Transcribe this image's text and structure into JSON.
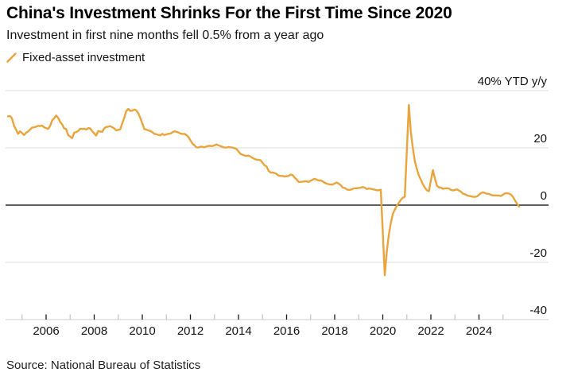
{
  "header": {
    "title": "China's Investment Shrinks For the First Time Since 2020",
    "subtitle": "Investment in first nine months fell 0.5% from a year ago"
  },
  "legend": {
    "items": [
      {
        "label": "Fixed-asset investment",
        "marker": "slash-icon",
        "color": "#E9A43C"
      }
    ]
  },
  "footer": {
    "source": "Source: National Bureau of Statistics"
  },
  "colors": {
    "line": "#E9A43C",
    "gridline": "#DBDBDB",
    "zero_line": "#000000",
    "axis_line": "#CDCDCD",
    "tick_major": "#191919",
    "tick_minor": "#C6C6C6",
    "text": "#141414"
  },
  "chart_data": {
    "type": "line",
    "title": "China's Investment Shrinks For the First Time Since 2020",
    "subtitle": "Investment in first nine months fell 0.5% from a year ago",
    "ylabel": "40% YTD y/y",
    "xlabel": "",
    "ylim": [
      -40,
      40
    ],
    "xlim": [
      2004.3,
      2026.9
    ],
    "grid": "horizontal",
    "legend_position": "top-left",
    "y_gridlines": [
      40,
      20,
      0,
      -20,
      -40
    ],
    "y_labels": [
      {
        "value": 40,
        "label": "40% YTD y/y"
      },
      {
        "value": 20,
        "label": "20"
      },
      {
        "value": 0,
        "label": "0"
      },
      {
        "value": -20,
        "label": "-20"
      },
      {
        "value": -40,
        "label": "-40"
      }
    ],
    "x_major_ticks": [
      {
        "year": 2006,
        "label": "2006"
      },
      {
        "year": 2008,
        "label": "2008"
      },
      {
        "year": 2010,
        "label": "2010"
      },
      {
        "year": 2012,
        "label": "2012"
      },
      {
        "year": 2014,
        "label": "2014"
      },
      {
        "year": 2016,
        "label": "2016"
      },
      {
        "year": 2018,
        "label": "2018"
      },
      {
        "year": 2020,
        "label": "2020"
      },
      {
        "year": 2022,
        "label": "2022"
      },
      {
        "year": 2024,
        "label": "2024"
      }
    ],
    "x_minor_ticks": [
      2005,
      2007,
      2009,
      2011,
      2013,
      2015,
      2017,
      2019,
      2021,
      2023,
      2025
    ],
    "series": [
      {
        "name": "Fixed-asset investment",
        "color": "#E9A43C",
        "points": [
          [
            2004.417,
            31.0
          ],
          [
            2004.5,
            31.1
          ],
          [
            2004.583,
            30.3
          ],
          [
            2004.667,
            27.7
          ],
          [
            2004.75,
            26.4
          ],
          [
            2004.833,
            24.9
          ],
          [
            2004.917,
            25.8
          ],
          [
            2005.083,
            24.5
          ],
          [
            2005.167,
            25.3
          ],
          [
            2005.25,
            25.7
          ],
          [
            2005.333,
            26.4
          ],
          [
            2005.417,
            27.1
          ],
          [
            2005.5,
            27.2
          ],
          [
            2005.583,
            27.4
          ],
          [
            2005.667,
            27.7
          ],
          [
            2005.75,
            27.6
          ],
          [
            2005.833,
            27.8
          ],
          [
            2005.917,
            27.2
          ],
          [
            2006.083,
            26.6
          ],
          [
            2006.167,
            27.7
          ],
          [
            2006.25,
            29.6
          ],
          [
            2006.333,
            30.3
          ],
          [
            2006.417,
            31.3
          ],
          [
            2006.5,
            30.5
          ],
          [
            2006.583,
            29.1
          ],
          [
            2006.667,
            28.2
          ],
          [
            2006.75,
            26.8
          ],
          [
            2006.833,
            26.6
          ],
          [
            2006.917,
            24.5
          ],
          [
            2007.083,
            23.4
          ],
          [
            2007.167,
            25.3
          ],
          [
            2007.25,
            25.5
          ],
          [
            2007.333,
            25.9
          ],
          [
            2007.417,
            26.7
          ],
          [
            2007.5,
            26.6
          ],
          [
            2007.583,
            26.7
          ],
          [
            2007.667,
            26.4
          ],
          [
            2007.75,
            26.9
          ],
          [
            2007.833,
            26.8
          ],
          [
            2007.917,
            25.8
          ],
          [
            2008.083,
            24.3
          ],
          [
            2008.167,
            25.9
          ],
          [
            2008.25,
            25.7
          ],
          [
            2008.333,
            25.6
          ],
          [
            2008.417,
            26.8
          ],
          [
            2008.5,
            27.3
          ],
          [
            2008.583,
            27.4
          ],
          [
            2008.667,
            27.6
          ],
          [
            2008.75,
            27.2
          ],
          [
            2008.833,
            26.8
          ],
          [
            2008.917,
            26.1
          ],
          [
            2009.083,
            26.5
          ],
          [
            2009.167,
            28.6
          ],
          [
            2009.25,
            30.5
          ],
          [
            2009.333,
            32.9
          ],
          [
            2009.417,
            33.6
          ],
          [
            2009.5,
            32.9
          ],
          [
            2009.583,
            33.0
          ],
          [
            2009.667,
            33.4
          ],
          [
            2009.75,
            33.1
          ],
          [
            2009.833,
            32.1
          ],
          [
            2009.917,
            30.5
          ],
          [
            2010.083,
            26.6
          ],
          [
            2010.167,
            26.4
          ],
          [
            2010.25,
            26.1
          ],
          [
            2010.333,
            25.9
          ],
          [
            2010.417,
            25.5
          ],
          [
            2010.5,
            24.9
          ],
          [
            2010.583,
            24.8
          ],
          [
            2010.667,
            24.5
          ],
          [
            2010.75,
            24.4
          ],
          [
            2010.833,
            24.9
          ],
          [
            2010.917,
            24.5
          ],
          [
            2011.083,
            24.9
          ],
          [
            2011.167,
            25.0
          ],
          [
            2011.25,
            25.4
          ],
          [
            2011.333,
            25.8
          ],
          [
            2011.417,
            25.6
          ],
          [
            2011.5,
            25.4
          ],
          [
            2011.583,
            25.0
          ],
          [
            2011.667,
            24.9
          ],
          [
            2011.75,
            24.9
          ],
          [
            2011.833,
            24.5
          ],
          [
            2011.917,
            23.8
          ],
          [
            2012.083,
            21.5
          ],
          [
            2012.167,
            20.9
          ],
          [
            2012.25,
            20.2
          ],
          [
            2012.333,
            20.1
          ],
          [
            2012.417,
            20.4
          ],
          [
            2012.5,
            20.4
          ],
          [
            2012.583,
            20.2
          ],
          [
            2012.667,
            20.5
          ],
          [
            2012.75,
            20.7
          ],
          [
            2012.833,
            20.7
          ],
          [
            2012.917,
            20.6
          ],
          [
            2013.083,
            21.2
          ],
          [
            2013.167,
            20.9
          ],
          [
            2013.25,
            20.6
          ],
          [
            2013.333,
            20.4
          ],
          [
            2013.417,
            20.1
          ],
          [
            2013.5,
            20.1
          ],
          [
            2013.583,
            20.3
          ],
          [
            2013.667,
            20.2
          ],
          [
            2013.75,
            20.1
          ],
          [
            2013.833,
            19.9
          ],
          [
            2013.917,
            19.6
          ],
          [
            2014.083,
            17.9
          ],
          [
            2014.167,
            17.6
          ],
          [
            2014.25,
            17.3
          ],
          [
            2014.333,
            17.2
          ],
          [
            2014.417,
            17.3
          ],
          [
            2014.5,
            17.0
          ],
          [
            2014.583,
            16.5
          ],
          [
            2014.667,
            16.1
          ],
          [
            2014.75,
            15.9
          ],
          [
            2014.833,
            15.8
          ],
          [
            2014.917,
            15.7
          ],
          [
            2015.083,
            13.9
          ],
          [
            2015.167,
            13.5
          ],
          [
            2015.25,
            12.0
          ],
          [
            2015.333,
            11.4
          ],
          [
            2015.417,
            11.4
          ],
          [
            2015.5,
            11.2
          ],
          [
            2015.583,
            10.9
          ],
          [
            2015.667,
            10.3
          ],
          [
            2015.75,
            10.2
          ],
          [
            2015.833,
            10.2
          ],
          [
            2015.917,
            10.0
          ],
          [
            2016.083,
            10.2
          ],
          [
            2016.167,
            10.7
          ],
          [
            2016.25,
            10.5
          ],
          [
            2016.333,
            9.6
          ],
          [
            2016.417,
            9.0
          ],
          [
            2016.5,
            8.1
          ],
          [
            2016.583,
            8.1
          ],
          [
            2016.667,
            8.2
          ],
          [
            2016.75,
            8.3
          ],
          [
            2016.833,
            8.3
          ],
          [
            2016.917,
            8.1
          ],
          [
            2017.083,
            8.9
          ],
          [
            2017.167,
            9.2
          ],
          [
            2017.25,
            8.9
          ],
          [
            2017.333,
            8.6
          ],
          [
            2017.417,
            8.6
          ],
          [
            2017.5,
            8.3
          ],
          [
            2017.583,
            7.8
          ],
          [
            2017.667,
            7.5
          ],
          [
            2017.75,
            7.3
          ],
          [
            2017.833,
            7.2
          ],
          [
            2017.917,
            7.2
          ],
          [
            2018.083,
            7.9
          ],
          [
            2018.167,
            7.5
          ],
          [
            2018.25,
            7.0
          ],
          [
            2018.333,
            6.1
          ],
          [
            2018.417,
            6.0
          ],
          [
            2018.5,
            5.5
          ],
          [
            2018.583,
            5.3
          ],
          [
            2018.667,
            5.4
          ],
          [
            2018.75,
            5.7
          ],
          [
            2018.833,
            5.9
          ],
          [
            2018.917,
            5.9
          ],
          [
            2019.083,
            6.1
          ],
          [
            2019.167,
            6.3
          ],
          [
            2019.25,
            6.1
          ],
          [
            2019.333,
            5.6
          ],
          [
            2019.417,
            5.8
          ],
          [
            2019.5,
            5.7
          ],
          [
            2019.583,
            5.5
          ],
          [
            2019.667,
            5.4
          ],
          [
            2019.75,
            5.2
          ],
          [
            2019.833,
            5.2
          ],
          [
            2019.917,
            5.4
          ],
          [
            2020.083,
            -24.5
          ],
          [
            2020.167,
            -16.1
          ],
          [
            2020.25,
            -10.3
          ],
          [
            2020.333,
            -6.3
          ],
          [
            2020.417,
            -3.1
          ],
          [
            2020.5,
            -1.6
          ],
          [
            2020.583,
            -0.3
          ],
          [
            2020.667,
            0.8
          ],
          [
            2020.75,
            1.8
          ],
          [
            2020.833,
            2.6
          ],
          [
            2020.917,
            2.9
          ],
          [
            2021.083,
            35.0
          ],
          [
            2021.167,
            25.6
          ],
          [
            2021.25,
            19.9
          ],
          [
            2021.333,
            15.4
          ],
          [
            2021.417,
            12.6
          ],
          [
            2021.5,
            10.3
          ],
          [
            2021.583,
            8.9
          ],
          [
            2021.667,
            7.3
          ],
          [
            2021.75,
            6.1
          ],
          [
            2021.833,
            5.2
          ],
          [
            2021.917,
            4.9
          ],
          [
            2022.083,
            12.2
          ],
          [
            2022.167,
            9.3
          ],
          [
            2022.25,
            6.8
          ],
          [
            2022.333,
            6.2
          ],
          [
            2022.417,
            6.1
          ],
          [
            2022.5,
            5.7
          ],
          [
            2022.583,
            5.8
          ],
          [
            2022.667,
            5.9
          ],
          [
            2022.75,
            5.8
          ],
          [
            2022.833,
            5.3
          ],
          [
            2022.917,
            5.1
          ],
          [
            2023.083,
            5.5
          ],
          [
            2023.167,
            5.1
          ],
          [
            2023.25,
            4.7
          ],
          [
            2023.333,
            4.0
          ],
          [
            2023.417,
            3.8
          ],
          [
            2023.5,
            3.4
          ],
          [
            2023.583,
            3.2
          ],
          [
            2023.667,
            3.1
          ],
          [
            2023.75,
            2.9
          ],
          [
            2023.833,
            2.9
          ],
          [
            2023.917,
            3.0
          ],
          [
            2024.083,
            4.2
          ],
          [
            2024.167,
            4.5
          ],
          [
            2024.25,
            4.2
          ],
          [
            2024.333,
            4.0
          ],
          [
            2024.417,
            3.9
          ],
          [
            2024.5,
            3.6
          ],
          [
            2024.583,
            3.4
          ],
          [
            2024.667,
            3.4
          ],
          [
            2024.75,
            3.4
          ],
          [
            2024.833,
            3.3
          ],
          [
            2024.917,
            3.2
          ],
          [
            2025.083,
            4.1
          ],
          [
            2025.167,
            4.2
          ],
          [
            2025.25,
            4.0
          ],
          [
            2025.333,
            3.7
          ],
          [
            2025.417,
            2.8
          ],
          [
            2025.5,
            1.6
          ],
          [
            2025.583,
            0.5
          ],
          [
            2025.667,
            -0.5
          ]
        ]
      }
    ]
  }
}
